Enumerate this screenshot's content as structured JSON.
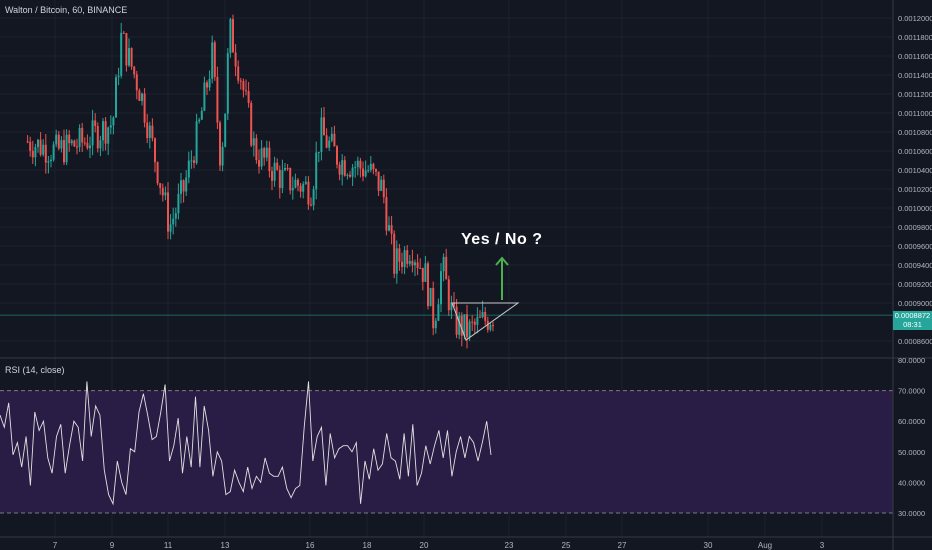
{
  "chart_data": [
    {
      "type": "candlestick",
      "title": "Walton / Bitcoin, 60, BINANCE",
      "ylim": [
        0.00085,
        0.00122
      ],
      "y_ticks": [
        "0.0012000",
        "0.0011800",
        "0.0011600",
        "0.0011400",
        "0.0011200",
        "0.0011000",
        "0.0010800",
        "0.0010600",
        "0.0010400",
        "0.0010200",
        "0.0010000",
        "0.0009800",
        "0.0009600",
        "0.0009400",
        "0.0009200",
        "0.0009000",
        "0.0008600"
      ],
      "current_price": "0.0008872",
      "current_price_value": 0.0008872,
      "countdown": "08:31",
      "x_ticks": [
        "7",
        "9",
        "11",
        "13",
        "16",
        "18",
        "20",
        "23",
        "25",
        "27",
        "30",
        "Aug",
        "3"
      ],
      "price_path": [
        {
          "x": "6",
          "y": 0.00107
        },
        {
          "x": "7",
          "y": 0.00106
        },
        {
          "x": "8",
          "y": 0.00107
        },
        {
          "x": "9",
          "y": 0.00109
        },
        {
          "x": "9.3",
          "y": 0.00118
        },
        {
          "x": "10",
          "y": 0.00112
        },
        {
          "x": "10.8",
          "y": 0.00101
        },
        {
          "x": "11",
          "y": 0.00098
        },
        {
          "x": "11.5",
          "y": 0.00102
        },
        {
          "x": "12",
          "y": 0.00108
        },
        {
          "x": "12.5",
          "y": 0.00116
        },
        {
          "x": "12.8",
          "y": 0.00105
        },
        {
          "x": "13",
          "y": 0.00112
        },
        {
          "x": "13.1",
          "y": 0.00119
        },
        {
          "x": "13.5",
          "y": 0.00114
        },
        {
          "x": "14",
          "y": 0.00106
        },
        {
          "x": "15",
          "y": 0.00103
        },
        {
          "x": "16",
          "y": 0.00102
        },
        {
          "x": "16.3",
          "y": 0.00108
        },
        {
          "x": "17",
          "y": 0.00105
        },
        {
          "x": "18",
          "y": 0.00104
        },
        {
          "x": "18.5",
          "y": 0.00102
        },
        {
          "x": "18.9",
          "y": 0.00094
        },
        {
          "x": "19.5",
          "y": 0.00096
        },
        {
          "x": "20",
          "y": 0.00093
        },
        {
          "x": "20.3",
          "y": 0.00088
        },
        {
          "x": "20.6",
          "y": 0.00094
        },
        {
          "x": "21",
          "y": 0.00088
        },
        {
          "x": "21.5",
          "y": 0.00087
        },
        {
          "x": "22",
          "y": 0.00088
        },
        {
          "x": "22.5",
          "y": 0.00089
        }
      ],
      "annotation": "Yes / No ?",
      "colors": {
        "up": "#26a69a",
        "down": "#ef5350",
        "background": "#131722",
        "arrow": "#4caf50"
      }
    },
    {
      "type": "line",
      "title": "RSI (14, close)",
      "ylim": [
        25,
        80
      ],
      "y_ticks": [
        "80.0000",
        "70.0000",
        "60.0000",
        "50.0000",
        "40.0000",
        "30.0000"
      ],
      "bands": [
        30,
        70
      ],
      "band_color": "#2a1d45",
      "line_color": "#e1e1e1",
      "values": [
        62,
        58,
        66,
        49,
        53,
        45,
        55,
        39,
        63,
        57,
        60,
        48,
        43,
        55,
        59,
        43,
        52,
        60,
        58,
        47,
        73,
        55,
        65,
        62,
        44,
        36,
        33,
        47,
        40,
        36,
        51,
        50,
        63,
        69,
        62,
        54,
        55,
        63,
        72,
        47,
        52,
        61,
        43,
        55,
        45,
        68,
        45,
        65,
        57,
        42,
        50,
        47,
        36,
        37,
        44,
        40,
        37,
        45,
        38,
        42,
        40,
        48,
        43,
        42,
        42,
        45,
        38,
        35,
        38,
        39,
        58,
        73,
        47,
        55,
        58,
        39,
        56,
        48,
        51,
        52,
        52,
        50,
        53,
        33,
        47,
        41,
        51,
        44,
        46,
        56,
        48,
        47,
        41,
        56,
        42,
        59,
        39,
        43,
        52,
        46,
        52,
        57,
        48,
        57,
        42,
        50,
        55,
        48,
        55,
        53,
        47,
        53,
        60,
        49
      ]
    }
  ]
}
